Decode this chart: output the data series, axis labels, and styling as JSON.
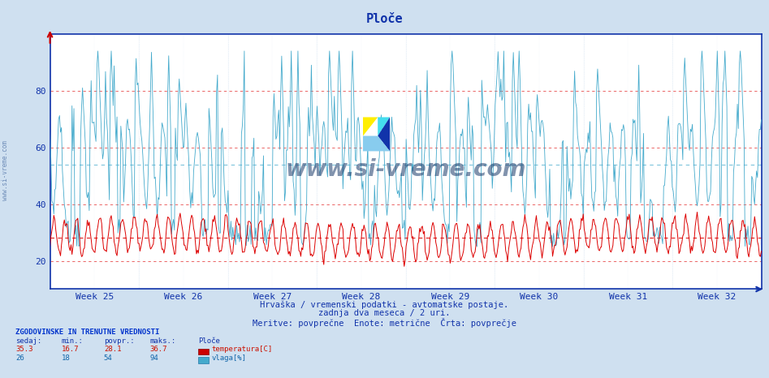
{
  "title": "Ploče",
  "bg_color": "#cfe0f0",
  "plot_bg_color": "#ffffff",
  "ylim": [
    10,
    100
  ],
  "yticks": [
    20,
    40,
    60,
    80
  ],
  "week_labels": [
    "Week 25",
    "Week 26",
    "Week 27",
    "Week 28",
    "Week 29",
    "Week 30",
    "Week 31",
    "Week 32"
  ],
  "temp_color": "#dd0000",
  "humid_color": "#44aacc",
  "temp_avg": 28.1,
  "humid_avg": 54,
  "temp_min": 16.7,
  "temp_max": 36.7,
  "temp_current": 35.3,
  "humid_min": 18,
  "humid_max": 94,
  "humid_current": 26,
  "horiz_grid_color": "#ccddee",
  "vert_grid_color": "#ccddee",
  "dashed_red_color": "#dd0000",
  "dashed_blue_color": "#44aacc",
  "subtitle1": "Hrvaška / vremenski podatki - avtomatske postaje.",
  "subtitle2": "zadnja dva meseca / 2 uri.",
  "subtitle3": "Meritve: povprečne  Enote: metrične  Črta: povprečje",
  "n_points": 744,
  "weeks": 8,
  "axis_color": "#1133aa",
  "tick_color": "#1133aa",
  "watermark_text": "www.si-vreme.com",
  "watermark_color": "#1a3a6a",
  "side_watermark": "www.si-vreme.com"
}
